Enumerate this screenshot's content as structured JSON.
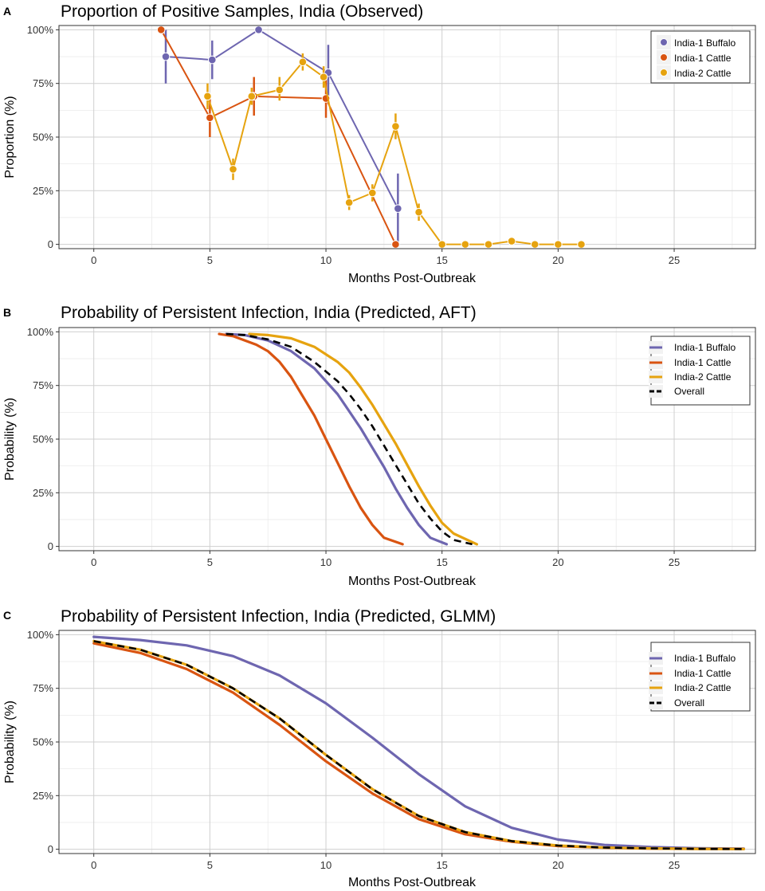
{
  "colors": {
    "buffalo": "#6E66B0",
    "cattle1": "#D95411",
    "cattle2": "#E6A30F",
    "overall": "#000000",
    "grid_major": "#cfcfcf",
    "grid_minor": "#ebebeb"
  },
  "chart_data": [
    {
      "panel": "A",
      "type": "line",
      "title": "Proportion of Positive Samples, India (Observed)",
      "xlabel": "Months Post-Outbreak",
      "ylabel": "Proportion (%)",
      "xlim": [
        -1.5,
        28.5
      ],
      "ylim": [
        -2,
        102
      ],
      "xticks": [
        0,
        5,
        10,
        15,
        20,
        25
      ],
      "xtick_labels": [
        "0",
        "5",
        "10",
        "15",
        "20",
        "25"
      ],
      "yticks": [
        0,
        25,
        50,
        75,
        100
      ],
      "ytick_labels": [
        "0",
        "25%",
        "50%",
        "75%",
        "100%"
      ],
      "legend_position": "top-right",
      "series": [
        {
          "name": "India-1 Buffalo",
          "color_key": "buffalo",
          "x": [
            3.1,
            5.1,
            7.1,
            10.1,
            13.1
          ],
          "y": [
            87.5,
            86,
            100,
            80,
            16.7
          ],
          "err": [
            [
              75,
              100
            ],
            [
              77,
              95
            ],
            null,
            [
              67,
              93
            ],
            [
              0,
              33
            ]
          ]
        },
        {
          "name": "India-1 Cattle",
          "color_key": "cattle1",
          "x": [
            2.9,
            5.0,
            6.9,
            10.0,
            13.0
          ],
          "y": [
            100,
            59,
            69,
            68,
            0
          ],
          "err": [
            null,
            [
              50,
              68
            ],
            [
              60,
              78
            ],
            [
              59,
              78
            ],
            null
          ]
        },
        {
          "name": "India-2 Cattle",
          "color_key": "cattle2",
          "x": [
            4.9,
            6.0,
            6.8,
            8.0,
            9.0,
            9.9,
            11.0,
            12.0,
            13.0,
            14.0,
            15.0,
            16.0,
            17.0,
            18.0,
            19.0,
            20.0,
            21.0
          ],
          "y": [
            69,
            35,
            69,
            72,
            85,
            78,
            19.5,
            24,
            55,
            15,
            0,
            0,
            0,
            1.5,
            0,
            0,
            0
          ],
          "err": [
            [
              63,
              75
            ],
            [
              30,
              40
            ],
            [
              65,
              73
            ],
            [
              67,
              78
            ],
            [
              81,
              89
            ],
            [
              73,
              83
            ],
            [
              16,
              23
            ],
            [
              20,
              28
            ],
            [
              49,
              61
            ],
            [
              11,
              19
            ],
            null,
            null,
            null,
            null,
            null,
            null,
            null
          ]
        }
      ]
    },
    {
      "panel": "B",
      "type": "line",
      "title": "Probability of Persistent Infection, India (Predicted, AFT)",
      "xlabel": "Months Post-Outbreak",
      "ylabel": "Probability (%)",
      "xlim": [
        -1.5,
        28.5
      ],
      "ylim": [
        -2,
        102
      ],
      "xticks": [
        0,
        5,
        10,
        15,
        20,
        25
      ],
      "xtick_labels": [
        "0",
        "5",
        "10",
        "15",
        "20",
        "25"
      ],
      "yticks": [
        0,
        25,
        50,
        75,
        100
      ],
      "ytick_labels": [
        "0",
        "25%",
        "50%",
        "75%",
        "100%"
      ],
      "legend_position": "top-right",
      "series": [
        {
          "name": "India-1 Buffalo",
          "color_key": "buffalo",
          "dash": false,
          "x": [
            5.7,
            6.5,
            7.5,
            8.5,
            9.5,
            10.5,
            11.0,
            11.5,
            12.0,
            12.5,
            13.0,
            13.5,
            14.0,
            14.5,
            15.2
          ],
          "y": [
            99,
            98.5,
            96,
            91,
            83,
            71,
            63,
            55,
            46,
            37,
            27,
            18,
            10,
            4,
            1
          ]
        },
        {
          "name": "India-1 Cattle",
          "color_key": "cattle1",
          "dash": false,
          "x": [
            5.4,
            6.0,
            7.0,
            7.5,
            8.0,
            8.5,
            9.0,
            9.5,
            10.0,
            10.5,
            11.0,
            11.5,
            12.0,
            12.5,
            13.3
          ],
          "y": [
            99,
            98,
            94,
            91,
            86,
            79,
            70,
            61,
            50,
            39,
            28,
            18,
            10,
            4,
            1
          ]
        },
        {
          "name": "India-2 Cattle",
          "color_key": "cattle2",
          "dash": false,
          "x": [
            6.7,
            7.5,
            8.5,
            9.5,
            10.5,
            11.0,
            11.5,
            12.0,
            12.5,
            13.0,
            13.5,
            14.0,
            14.5,
            15.0,
            15.5,
            16.5
          ],
          "y": [
            99,
            98.5,
            97,
            93,
            86,
            81,
            74,
            66,
            57,
            48,
            38,
            28,
            19,
            11,
            6,
            1
          ]
        },
        {
          "name": "Overall",
          "color_key": "overall",
          "dash": true,
          "x": [
            5.7,
            6.5,
            7.5,
            8.5,
            9.5,
            10.5,
            11.0,
            11.5,
            12.0,
            12.5,
            13.0,
            13.5,
            14.0,
            14.5,
            15.0,
            15.5,
            16.3
          ],
          "y": [
            99,
            98.5,
            96.5,
            93,
            86,
            77,
            71,
            64,
            56,
            47,
            38,
            29,
            20,
            13,
            7,
            3,
            1
          ]
        }
      ]
    },
    {
      "panel": "C",
      "type": "line",
      "title": "Probability of Persistent Infection, India (Predicted, GLMM)",
      "xlabel": "Months Post-Outbreak",
      "ylabel": "Probability (%)",
      "xlim": [
        -1.5,
        28.5
      ],
      "ylim": [
        -2,
        102
      ],
      "xticks": [
        0,
        5,
        10,
        15,
        20,
        25
      ],
      "xtick_labels": [
        "0",
        "5",
        "10",
        "15",
        "20",
        "25"
      ],
      "yticks": [
        0,
        25,
        50,
        75,
        100
      ],
      "ytick_labels": [
        "0",
        "25%",
        "50%",
        "75%",
        "100%"
      ],
      "legend_position": "top-right",
      "series": [
        {
          "name": "India-1 Buffalo",
          "color_key": "buffalo",
          "dash": false,
          "x": [
            0,
            2,
            4,
            6,
            8,
            10,
            12,
            14,
            16,
            18,
            20,
            22,
            24,
            26,
            28
          ],
          "y": [
            99,
            97.5,
            95,
            90,
            81,
            68,
            52,
            35,
            20,
            10,
            4.5,
            2,
            1,
            0.5,
            0.3
          ]
        },
        {
          "name": "India-1 Cattle",
          "color_key": "cattle1",
          "dash": false,
          "x": [
            0,
            2,
            4,
            6,
            8,
            10,
            12,
            14,
            16,
            18,
            20,
            22,
            24,
            26,
            28
          ],
          "y": [
            96,
            91.5,
            84,
            73,
            58,
            41,
            26,
            14,
            7,
            3.5,
            1.5,
            0.7,
            0.3,
            0.2,
            0.1
          ]
        },
        {
          "name": "India-2 Cattle",
          "color_key": "cattle2",
          "dash": false,
          "x": [
            0,
            2,
            4,
            6,
            8,
            10,
            12,
            14,
            16,
            18,
            20,
            22,
            24,
            26,
            28
          ],
          "y": [
            97,
            93,
            86,
            75,
            61,
            44,
            28,
            15.5,
            8,
            3.8,
            1.7,
            0.8,
            0.4,
            0.2,
            0.1
          ]
        },
        {
          "name": "Overall",
          "color_key": "overall",
          "dash": true,
          "x": [
            0,
            2,
            4,
            6,
            8,
            10,
            12,
            14,
            16,
            18,
            20,
            22,
            24,
            26,
            28
          ],
          "y": [
            97,
            93,
            86,
            75,
            61,
            44,
            28,
            15.5,
            8,
            3.8,
            1.7,
            0.8,
            0.4,
            0.2,
            0.1
          ]
        }
      ]
    }
  ]
}
